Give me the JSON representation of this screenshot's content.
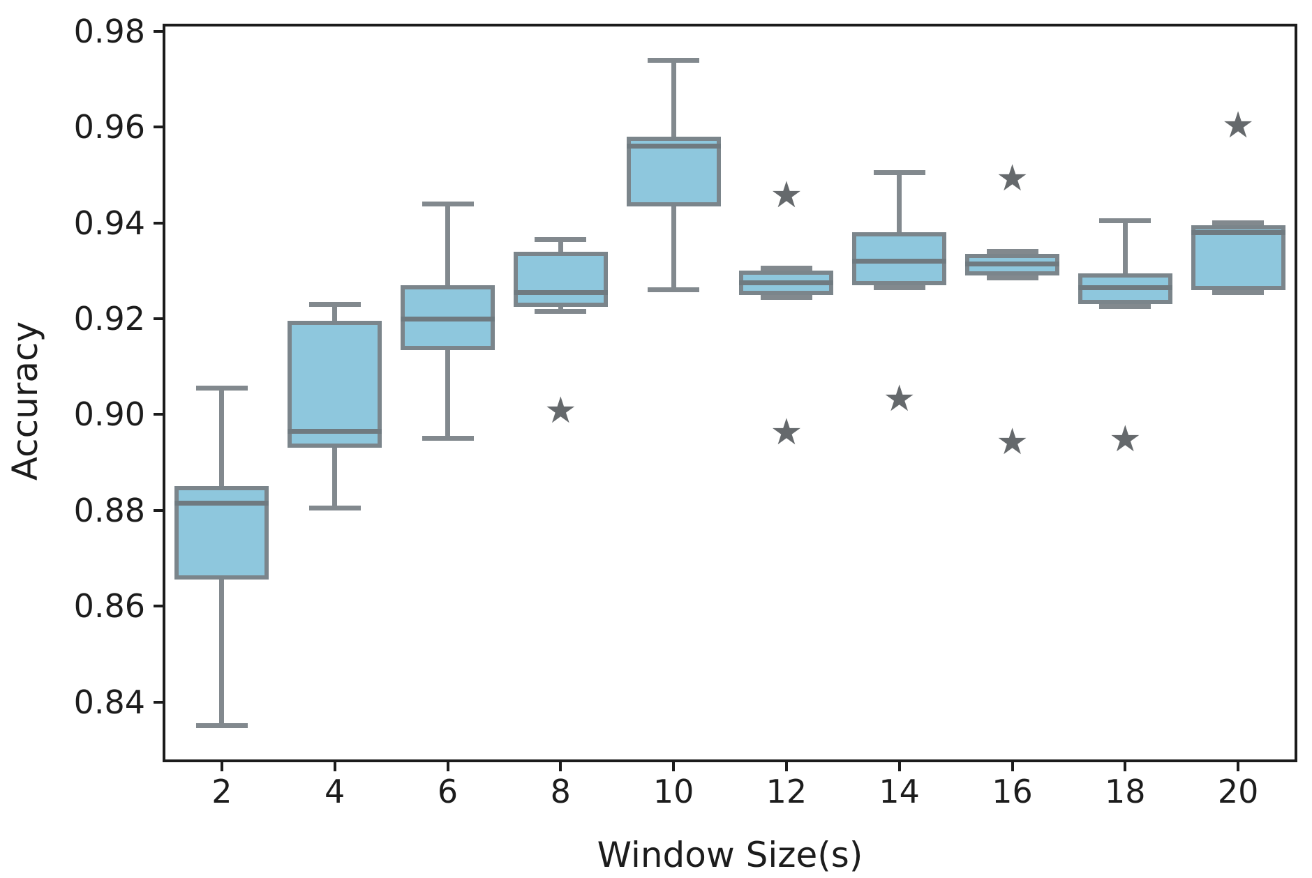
{
  "chart_data": {
    "type": "box",
    "title": "",
    "xlabel": "Window Size(s)",
    "ylabel": "Accuracy",
    "categories": [
      "2",
      "4",
      "6",
      "8",
      "10",
      "12",
      "14",
      "16",
      "18",
      "20"
    ],
    "ylim": [
      0.828,
      0.981
    ],
    "yticks": [
      0.84,
      0.86,
      0.88,
      0.9,
      0.92,
      0.94,
      0.96,
      0.98
    ],
    "ytick_labels": [
      "0.84",
      "0.86",
      "0.88",
      "0.90",
      "0.92",
      "0.94",
      "0.96",
      "0.98"
    ],
    "grid": false,
    "legend": null,
    "marker_glyph": "★",
    "boxes": [
      {
        "category": "2",
        "whislo": 0.835,
        "q1": 0.8655,
        "med": 0.8815,
        "q3": 0.885,
        "whishi": 0.9055,
        "fliers": []
      },
      {
        "category": "4",
        "whislo": 0.8805,
        "q1": 0.893,
        "med": 0.8965,
        "q3": 0.9195,
        "whishi": 0.923,
        "fliers": []
      },
      {
        "category": "6",
        "whislo": 0.895,
        "q1": 0.9135,
        "med": 0.92,
        "q3": 0.927,
        "whishi": 0.944,
        "fliers": []
      },
      {
        "category": "8",
        "whislo": 0.9215,
        "q1": 0.9225,
        "med": 0.9255,
        "q3": 0.934,
        "whishi": 0.9365,
        "fliers": [
          0.9005
        ]
      },
      {
        "category": "10",
        "whislo": 0.926,
        "q1": 0.9435,
        "med": 0.956,
        "q3": 0.958,
        "whishi": 0.974,
        "fliers": []
      },
      {
        "category": "12",
        "whislo": 0.9245,
        "q1": 0.925,
        "med": 0.9275,
        "q3": 0.93,
        "whishi": 0.9305,
        "fliers": [
          0.9455,
          0.896
        ]
      },
      {
        "category": "14",
        "whislo": 0.9265,
        "q1": 0.927,
        "med": 0.932,
        "q3": 0.938,
        "whishi": 0.9505,
        "fliers": [
          0.903
        ]
      },
      {
        "category": "16",
        "whislo": 0.9285,
        "q1": 0.929,
        "med": 0.9315,
        "q3": 0.9335,
        "whishi": 0.934,
        "fliers": [
          0.949,
          0.894
        ]
      },
      {
        "category": "18",
        "whislo": 0.9225,
        "q1": 0.923,
        "med": 0.9265,
        "q3": 0.9295,
        "whishi": 0.9405,
        "fliers": [
          0.8945
        ]
      },
      {
        "category": "20",
        "whislo": 0.9255,
        "q1": 0.926,
        "med": 0.938,
        "q3": 0.9395,
        "whishi": 0.94,
        "fliers": [
          0.96
        ]
      }
    ],
    "colors": {
      "box_fill": "#8ec7dd",
      "box_edge": "#7b858b",
      "whisker": "#82898e",
      "median": "#6f7a80",
      "flier": "#65696c",
      "spine": "#1c1c1c",
      "text": "#1c1c1c"
    }
  }
}
